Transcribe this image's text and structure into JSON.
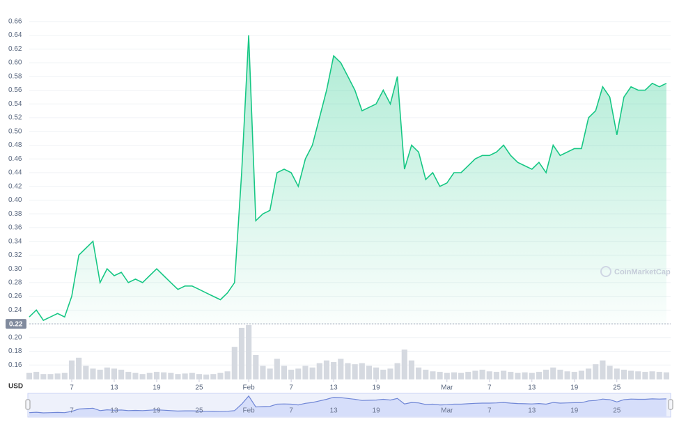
{
  "chart_data": {
    "type": "line",
    "currency_label": "USD",
    "watermark": "CoinMarketCap",
    "x": [
      0,
      1,
      2,
      3,
      4,
      5,
      6,
      7,
      8,
      9,
      10,
      11,
      12,
      13,
      14,
      15,
      16,
      17,
      18,
      19,
      20,
      21,
      22,
      23,
      24,
      25,
      26,
      27,
      28,
      29,
      30,
      31,
      32,
      33,
      34,
      35,
      36,
      37,
      38,
      39,
      40,
      41,
      42,
      43,
      44,
      45,
      46,
      47,
      48,
      49,
      50,
      51,
      52,
      53,
      54,
      55,
      56,
      57,
      58,
      59,
      60,
      61,
      62,
      63,
      64,
      65,
      66,
      67,
      68,
      69,
      70,
      71,
      72,
      73,
      74,
      75,
      76,
      77,
      78,
      79,
      80,
      81,
      82,
      83,
      84,
      85,
      86,
      87,
      88,
      89,
      90
    ],
    "series": [
      {
        "name": "Price",
        "color": "#16c784",
        "values": [
          0.23,
          0.24,
          0.225,
          0.23,
          0.235,
          0.23,
          0.26,
          0.32,
          0.33,
          0.34,
          0.28,
          0.3,
          0.29,
          0.295,
          0.28,
          0.285,
          0.28,
          0.29,
          0.3,
          0.29,
          0.28,
          0.27,
          0.275,
          0.275,
          0.27,
          0.265,
          0.26,
          0.255,
          0.265,
          0.28,
          0.44,
          0.64,
          0.37,
          0.38,
          0.385,
          0.44,
          0.445,
          0.44,
          0.42,
          0.46,
          0.48,
          0.52,
          0.56,
          0.61,
          0.6,
          0.58,
          0.56,
          0.53,
          0.535,
          0.54,
          0.56,
          0.54,
          0.58,
          0.445,
          0.48,
          0.47,
          0.43,
          0.44,
          0.42,
          0.425,
          0.44,
          0.44,
          0.45,
          0.46,
          0.465,
          0.465,
          0.47,
          0.48,
          0.465,
          0.455,
          0.45,
          0.445,
          0.455,
          0.44,
          0.48,
          0.465,
          0.47,
          0.475,
          0.475,
          0.52,
          0.53,
          0.565,
          0.55,
          0.495,
          0.55,
          0.565,
          0.56,
          0.56,
          0.57,
          0.565,
          0.57
        ]
      },
      {
        "name": "Volume",
        "color": "#d5d9e0",
        "axis": "y2",
        "values": [
          12,
          14,
          10,
          10,
          11,
          12,
          35,
          40,
          25,
          20,
          18,
          22,
          20,
          18,
          14,
          12,
          10,
          12,
          14,
          13,
          12,
          10,
          11,
          12,
          10,
          9,
          10,
          12,
          15,
          60,
          95,
          100,
          45,
          25,
          20,
          38,
          25,
          18,
          20,
          25,
          22,
          30,
          35,
          32,
          38,
          30,
          28,
          30,
          25,
          22,
          18,
          20,
          30,
          55,
          35,
          22,
          18,
          15,
          14,
          12,
          13,
          12,
          14,
          16,
          18,
          15,
          14,
          16,
          14,
          12,
          13,
          12,
          14,
          18,
          22,
          18,
          15,
          14,
          16,
          20,
          28,
          35,
          25,
          20,
          18,
          16,
          15,
          14,
          15,
          14,
          13
        ]
      }
    ],
    "xlim": [
      0,
      90.5
    ],
    "xticks": [
      {
        "value": 6,
        "label": "7"
      },
      {
        "value": 12,
        "label": "13"
      },
      {
        "value": 18,
        "label": "19"
      },
      {
        "value": 24,
        "label": "25"
      },
      {
        "value": 31,
        "label": "Feb"
      },
      {
        "value": 37,
        "label": "7"
      },
      {
        "value": 43,
        "label": "13"
      },
      {
        "value": 49,
        "label": "19"
      },
      {
        "value": 59,
        "label": "Mar"
      },
      {
        "value": 65,
        "label": "7"
      },
      {
        "value": 71,
        "label": "13"
      },
      {
        "value": 77,
        "label": "19"
      },
      {
        "value": 83,
        "label": "25"
      }
    ],
    "ylim": [
      0.139,
      0.671
    ],
    "yticks": [
      {
        "value": 0.16,
        "label": "0.16"
      },
      {
        "value": 0.18,
        "label": "0.18"
      },
      {
        "value": 0.2,
        "label": "0.20"
      },
      0.22,
      0.24,
      0.26,
      0.28,
      {
        "value": 0.3,
        "label": "0.30"
      },
      0.32,
      0.34,
      0.36,
      0.38,
      {
        "value": 0.4,
        "label": "0.40"
      },
      0.42,
      0.44,
      0.46,
      0.48,
      {
        "value": 0.5,
        "label": "0.50"
      },
      0.52,
      0.54,
      0.56,
      0.58,
      {
        "value": 0.6,
        "label": "0.60"
      },
      0.62,
      0.64,
      0.66
    ],
    "y2lim": [
      0,
      100
    ],
    "reference_value": 0.22,
    "grid": true
  }
}
